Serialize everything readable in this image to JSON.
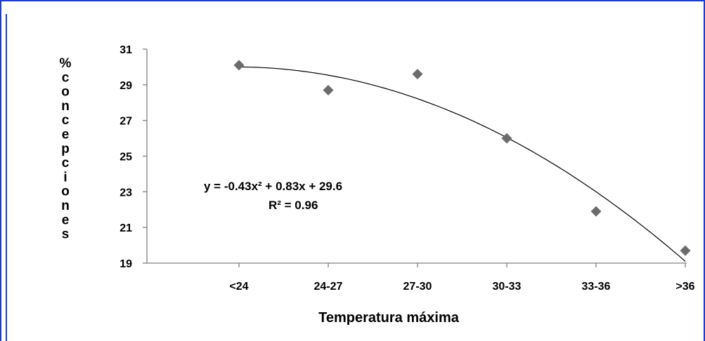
{
  "chart_data": {
    "type": "scatter",
    "title": "",
    "xlabel": "Temperatura máxima",
    "ylabel": "% concepciones",
    "categories": [
      "<24",
      "24-27",
      "27-30",
      "30-33",
      "33-36",
      ">36"
    ],
    "ylim": [
      19,
      31
    ],
    "yticks": [
      19,
      21,
      23,
      25,
      27,
      29,
      31
    ],
    "series": [
      {
        "values": [
          30.1,
          28.7,
          29.6,
          26.0,
          21.9,
          19.7
        ],
        "marker": "diamond",
        "color": "#6b6b6b"
      }
    ],
    "trendline": {
      "type": "polynomial",
      "coefficients": {
        "a": -0.43,
        "b": 0.83,
        "c": 29.6
      },
      "equation": "y = -0.43x² + 0.83x + 29.6",
      "r2": "R² = 0.96",
      "color": "#000000"
    },
    "grid": false,
    "legend": "none"
  },
  "colors": {
    "frame": "#1a3cd6",
    "axis": "#808080",
    "marker": "#6b6b6b"
  }
}
